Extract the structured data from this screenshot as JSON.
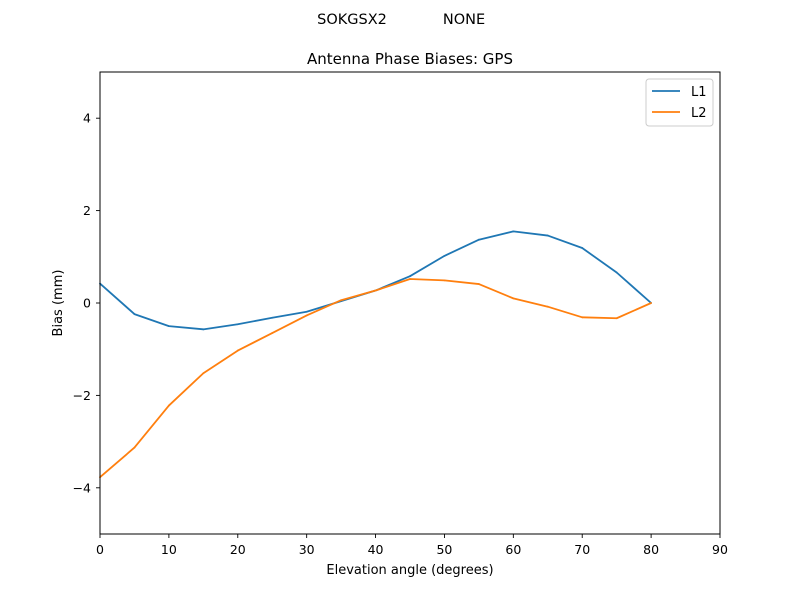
{
  "figure": {
    "suptitle_left": "SOKGSX2",
    "suptitle_right": "NONE"
  },
  "chart_data": {
    "type": "line",
    "title": "Antenna Phase Biases: GPS",
    "xlabel": "Elevation angle (degrees)",
    "ylabel": "Bias (mm)",
    "xlim": [
      0,
      90
    ],
    "ylim": [
      -5,
      5
    ],
    "xticks": [
      0,
      10,
      20,
      30,
      40,
      50,
      60,
      70,
      80,
      90
    ],
    "yticks": [
      -4,
      -2,
      0,
      2,
      4
    ],
    "xtick_labels": [
      "0",
      "10",
      "20",
      "30",
      "40",
      "50",
      "60",
      "70",
      "80",
      "90"
    ],
    "ytick_labels": [
      "−4",
      "−2",
      "0",
      "2",
      "4"
    ],
    "grid": false,
    "legend_position": "top-right",
    "x": [
      0,
      5,
      10,
      15,
      20,
      25,
      30,
      35,
      40,
      45,
      50,
      55,
      60,
      65,
      70,
      75,
      80
    ],
    "series": [
      {
        "name": "L1",
        "color": "#1f77b4",
        "values": [
          0.42,
          -0.24,
          -0.5,
          -0.57,
          -0.46,
          -0.32,
          -0.19,
          0.04,
          0.27,
          0.58,
          1.02,
          1.37,
          1.55,
          1.46,
          1.19,
          0.66,
          0.0
        ]
      },
      {
        "name": "L2",
        "color": "#ff7f0e",
        "values": [
          -3.77,
          -3.13,
          -2.22,
          -1.52,
          -1.03,
          -0.65,
          -0.27,
          0.06,
          0.27,
          0.52,
          0.49,
          0.41,
          0.1,
          -0.08,
          -0.31,
          -0.33,
          0.0
        ]
      }
    ]
  }
}
